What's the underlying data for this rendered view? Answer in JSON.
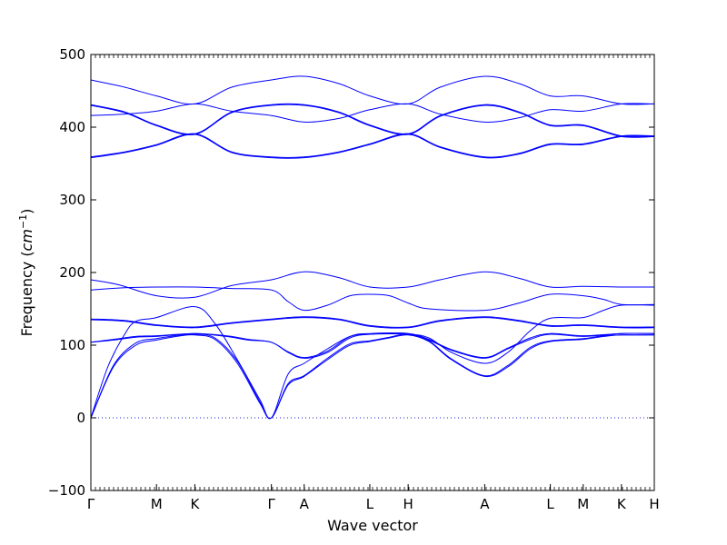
{
  "chart_data": {
    "type": "line",
    "xlabel": "Wave vector",
    "ylabel": "Frequency (cm⁻¹)",
    "ylabel_main": "Frequency (",
    "ylabel_unit": "cm",
    "ylabel_sup": "−1",
    "ylabel_close": ")",
    "ylim": [
      -100,
      500
    ],
    "yticks": [
      -100,
      0,
      100,
      200,
      300,
      400,
      500
    ],
    "xlim": [
      0,
      1
    ],
    "grid": false,
    "line_color": "#0000ff",
    "zero_line_color": "#2222cc",
    "high_symmetry_points": [
      {
        "label": "Γ",
        "x": 0.0
      },
      {
        "label": "M",
        "x": 0.1165
      },
      {
        "label": "K",
        "x": 0.1845
      },
      {
        "label": "Γ",
        "x": 0.3204
      },
      {
        "label": "A",
        "x": 0.3786
      },
      {
        "label": "L",
        "x": 0.4951
      },
      {
        "label": "H",
        "x": 0.5631
      },
      {
        "label": "A",
        "x": 0.699
      },
      {
        "label": "L",
        "x": 0.8155
      },
      {
        "label": "M",
        "x": 0.8738
      },
      {
        "label": "K",
        "x": 0.9417
      },
      {
        "label": "H",
        "x": 1.0
      }
    ],
    "series": [
      {
        "values": [
          [
            0.0,
            0
          ],
          [
            0.04,
            70
          ],
          [
            0.08,
            100
          ],
          [
            0.1165,
            107
          ],
          [
            0.16,
            113
          ],
          [
            0.1845,
            114
          ],
          [
            0.22,
            108
          ],
          [
            0.26,
            75
          ],
          [
            0.3,
            20
          ],
          [
            0.3204,
            0
          ],
          [
            0.35,
            45
          ],
          [
            0.3786,
            57
          ],
          [
            0.42,
            80
          ],
          [
            0.46,
            100
          ],
          [
            0.4951,
            105
          ],
          [
            0.53,
            110
          ],
          [
            0.5631,
            114
          ],
          [
            0.6,
            105
          ],
          [
            0.64,
            80
          ],
          [
            0.699,
            57
          ],
          [
            0.74,
            70
          ],
          [
            0.78,
            95
          ],
          [
            0.8155,
            105
          ],
          [
            0.8738,
            108
          ],
          [
            0.91,
            112
          ],
          [
            0.9417,
            114
          ],
          [
            1.0,
            114
          ]
        ]
      },
      {
        "values": [
          [
            0.0,
            0
          ],
          [
            0.04,
            72
          ],
          [
            0.08,
            103
          ],
          [
            0.1165,
            109
          ],
          [
            0.16,
            114
          ],
          [
            0.1845,
            115
          ],
          [
            0.22,
            110
          ],
          [
            0.26,
            78
          ],
          [
            0.3,
            22
          ],
          [
            0.3204,
            0
          ],
          [
            0.35,
            47
          ],
          [
            0.3786,
            58
          ],
          [
            0.42,
            82
          ],
          [
            0.46,
            102
          ],
          [
            0.4951,
            106
          ],
          [
            0.53,
            111
          ],
          [
            0.5631,
            115
          ],
          [
            0.6,
            106
          ],
          [
            0.64,
            81
          ],
          [
            0.699,
            58
          ],
          [
            0.74,
            72
          ],
          [
            0.78,
            97
          ],
          [
            0.8155,
            106
          ],
          [
            0.8738,
            109
          ],
          [
            0.91,
            113
          ],
          [
            0.9417,
            114
          ],
          [
            1.0,
            114
          ]
        ]
      },
      {
        "values": [
          [
            0.0,
            0
          ],
          [
            0.03,
            70
          ],
          [
            0.06,
            115
          ],
          [
            0.08,
            133
          ],
          [
            0.1165,
            138
          ],
          [
            0.1845,
            153
          ],
          [
            0.22,
            130
          ],
          [
            0.26,
            80
          ],
          [
            0.3,
            25
          ],
          [
            0.3204,
            0
          ],
          [
            0.35,
            60
          ],
          [
            0.3786,
            75
          ],
          [
            0.42,
            95
          ],
          [
            0.46,
            112
          ],
          [
            0.4951,
            115
          ],
          [
            0.5631,
            115
          ],
          [
            0.6,
            110
          ],
          [
            0.64,
            90
          ],
          [
            0.699,
            75
          ],
          [
            0.74,
            90
          ],
          [
            0.78,
            120
          ],
          [
            0.8155,
            137
          ],
          [
            0.8738,
            138
          ],
          [
            0.91,
            148
          ],
          [
            0.9417,
            155
          ],
          [
            1.0,
            155
          ]
        ]
      },
      {
        "values": [
          [
            0.0,
            104
          ],
          [
            0.04,
            107
          ],
          [
            0.08,
            111
          ],
          [
            0.1165,
            112
          ],
          [
            0.1845,
            116
          ],
          [
            0.24,
            112
          ],
          [
            0.28,
            107
          ],
          [
            0.3204,
            104
          ],
          [
            0.35,
            90
          ],
          [
            0.3786,
            82
          ],
          [
            0.42,
            90
          ],
          [
            0.46,
            110
          ],
          [
            0.4951,
            115
          ],
          [
            0.5631,
            116
          ],
          [
            0.6,
            107
          ],
          [
            0.64,
            93
          ],
          [
            0.699,
            82
          ],
          [
            0.74,
            95
          ],
          [
            0.78,
            108
          ],
          [
            0.8155,
            115
          ],
          [
            0.8738,
            112
          ],
          [
            0.9417,
            116
          ],
          [
            1.0,
            116
          ]
        ]
      },
      {
        "values": [
          [
            0.0,
            104
          ],
          [
            0.04,
            108
          ],
          [
            0.08,
            112
          ],
          [
            0.1165,
            113
          ],
          [
            0.1845,
            116
          ],
          [
            0.24,
            113
          ],
          [
            0.28,
            108
          ],
          [
            0.3204,
            104
          ],
          [
            0.35,
            91
          ],
          [
            0.3786,
            83
          ],
          [
            0.42,
            92
          ],
          [
            0.46,
            112
          ],
          [
            0.4951,
            116
          ],
          [
            0.5631,
            116
          ],
          [
            0.6,
            108
          ],
          [
            0.64,
            94
          ],
          [
            0.699,
            83
          ],
          [
            0.74,
            96
          ],
          [
            0.78,
            110
          ],
          [
            0.8155,
            116
          ],
          [
            0.8738,
            113
          ],
          [
            0.9417,
            116
          ],
          [
            1.0,
            116
          ]
        ]
      },
      {
        "values": [
          [
            0.0,
            135
          ],
          [
            0.06,
            133
          ],
          [
            0.1165,
            127
          ],
          [
            0.1845,
            124
          ],
          [
            0.25,
            130
          ],
          [
            0.3204,
            135
          ],
          [
            0.3786,
            138
          ],
          [
            0.44,
            135
          ],
          [
            0.4951,
            126
          ],
          [
            0.5631,
            124
          ],
          [
            0.62,
            133
          ],
          [
            0.699,
            138
          ],
          [
            0.76,
            133
          ],
          [
            0.8155,
            126
          ],
          [
            0.8738,
            127
          ],
          [
            0.9417,
            124
          ],
          [
            1.0,
            124
          ]
        ]
      },
      {
        "values": [
          [
            0.0,
            136
          ],
          [
            0.06,
            134
          ],
          [
            0.1165,
            128
          ],
          [
            0.1845,
            125
          ],
          [
            0.25,
            131
          ],
          [
            0.3204,
            136
          ],
          [
            0.3786,
            139
          ],
          [
            0.44,
            136
          ],
          [
            0.4951,
            127
          ],
          [
            0.5631,
            125
          ],
          [
            0.62,
            134
          ],
          [
            0.699,
            139
          ],
          [
            0.76,
            134
          ],
          [
            0.8155,
            127
          ],
          [
            0.8738,
            128
          ],
          [
            0.9417,
            125
          ],
          [
            1.0,
            125
          ]
        ]
      },
      {
        "values": [
          [
            0.0,
            176
          ],
          [
            0.06,
            179
          ],
          [
            0.1165,
            180
          ],
          [
            0.1845,
            180
          ],
          [
            0.25,
            178
          ],
          [
            0.3204,
            176
          ],
          [
            0.35,
            160
          ],
          [
            0.3786,
            148
          ],
          [
            0.42,
            155
          ],
          [
            0.46,
            168
          ],
          [
            0.4951,
            170
          ],
          [
            0.53,
            168
          ],
          [
            0.5631,
            158
          ],
          [
            0.6,
            150
          ],
          [
            0.699,
            148
          ],
          [
            0.76,
            158
          ],
          [
            0.8155,
            170
          ],
          [
            0.8738,
            168
          ],
          [
            0.91,
            163
          ],
          [
            0.9417,
            156
          ],
          [
            1.0,
            156
          ]
        ]
      },
      {
        "values": [
          [
            0.0,
            190
          ],
          [
            0.05,
            183
          ],
          [
            0.1165,
            168
          ],
          [
            0.1845,
            166
          ],
          [
            0.25,
            182
          ],
          [
            0.3204,
            190
          ],
          [
            0.3786,
            201
          ],
          [
            0.44,
            193
          ],
          [
            0.4951,
            180
          ],
          [
            0.5631,
            180
          ],
          [
            0.62,
            190
          ],
          [
            0.699,
            201
          ],
          [
            0.76,
            192
          ],
          [
            0.8155,
            180
          ],
          [
            0.8738,
            181
          ],
          [
            0.9417,
            180
          ],
          [
            1.0,
            180
          ]
        ]
      },
      {
        "values": [
          [
            0.0,
            358
          ],
          [
            0.06,
            365
          ],
          [
            0.1165,
            375
          ],
          [
            0.1845,
            390
          ],
          [
            0.25,
            365
          ],
          [
            0.3204,
            358
          ],
          [
            0.3786,
            358
          ],
          [
            0.44,
            365
          ],
          [
            0.4951,
            376
          ],
          [
            0.5631,
            390
          ],
          [
            0.62,
            372
          ],
          [
            0.699,
            358
          ],
          [
            0.76,
            363
          ],
          [
            0.8155,
            376
          ],
          [
            0.8738,
            376
          ],
          [
            0.9417,
            387
          ],
          [
            1.0,
            387
          ]
        ]
      },
      {
        "values": [
          [
            0.0,
            359
          ],
          [
            0.06,
            366
          ],
          [
            0.1165,
            376
          ],
          [
            0.1845,
            391
          ],
          [
            0.25,
            366
          ],
          [
            0.3204,
            359
          ],
          [
            0.3786,
            359
          ],
          [
            0.44,
            366
          ],
          [
            0.4951,
            377
          ],
          [
            0.5631,
            391
          ],
          [
            0.62,
            373
          ],
          [
            0.699,
            359
          ],
          [
            0.76,
            364
          ],
          [
            0.8155,
            377
          ],
          [
            0.8738,
            377
          ],
          [
            0.9417,
            388
          ],
          [
            1.0,
            388
          ]
        ]
      },
      {
        "values": [
          [
            0.0,
            430
          ],
          [
            0.06,
            420
          ],
          [
            0.1165,
            402
          ],
          [
            0.1845,
            390
          ],
          [
            0.25,
            420
          ],
          [
            0.3204,
            430
          ],
          [
            0.3786,
            430
          ],
          [
            0.44,
            420
          ],
          [
            0.4951,
            402
          ],
          [
            0.5631,
            390
          ],
          [
            0.62,
            415
          ],
          [
            0.699,
            430
          ],
          [
            0.76,
            420
          ],
          [
            0.8155,
            402
          ],
          [
            0.8738,
            402
          ],
          [
            0.9417,
            387
          ],
          [
            1.0,
            387
          ]
        ]
      },
      {
        "values": [
          [
            0.0,
            431
          ],
          [
            0.06,
            421
          ],
          [
            0.1165,
            403
          ],
          [
            0.1845,
            391
          ],
          [
            0.25,
            421
          ],
          [
            0.3204,
            431
          ],
          [
            0.3786,
            431
          ],
          [
            0.44,
            421
          ],
          [
            0.4951,
            403
          ],
          [
            0.5631,
            391
          ],
          [
            0.62,
            416
          ],
          [
            0.699,
            431
          ],
          [
            0.76,
            421
          ],
          [
            0.8155,
            403
          ],
          [
            0.8738,
            403
          ],
          [
            0.9417,
            388
          ],
          [
            1.0,
            388
          ]
        ]
      },
      {
        "values": [
          [
            0.0,
            416
          ],
          [
            0.06,
            418
          ],
          [
            0.1165,
            422
          ],
          [
            0.1845,
            432
          ],
          [
            0.25,
            422
          ],
          [
            0.3204,
            416
          ],
          [
            0.3786,
            407
          ],
          [
            0.44,
            412
          ],
          [
            0.4951,
            424
          ],
          [
            0.5631,
            432
          ],
          [
            0.62,
            418
          ],
          [
            0.699,
            407
          ],
          [
            0.76,
            413
          ],
          [
            0.8155,
            424
          ],
          [
            0.8738,
            422
          ],
          [
            0.9417,
            432
          ],
          [
            1.0,
            432
          ]
        ]
      },
      {
        "values": [
          [
            0.0,
            465
          ],
          [
            0.06,
            455
          ],
          [
            0.1165,
            443
          ],
          [
            0.1845,
            432
          ],
          [
            0.25,
            455
          ],
          [
            0.3204,
            465
          ],
          [
            0.3786,
            470
          ],
          [
            0.44,
            460
          ],
          [
            0.4951,
            443
          ],
          [
            0.5631,
            432
          ],
          [
            0.62,
            455
          ],
          [
            0.699,
            470
          ],
          [
            0.76,
            460
          ],
          [
            0.8155,
            443
          ],
          [
            0.8738,
            443
          ],
          [
            0.9417,
            432
          ],
          [
            1.0,
            432
          ]
        ]
      }
    ]
  }
}
